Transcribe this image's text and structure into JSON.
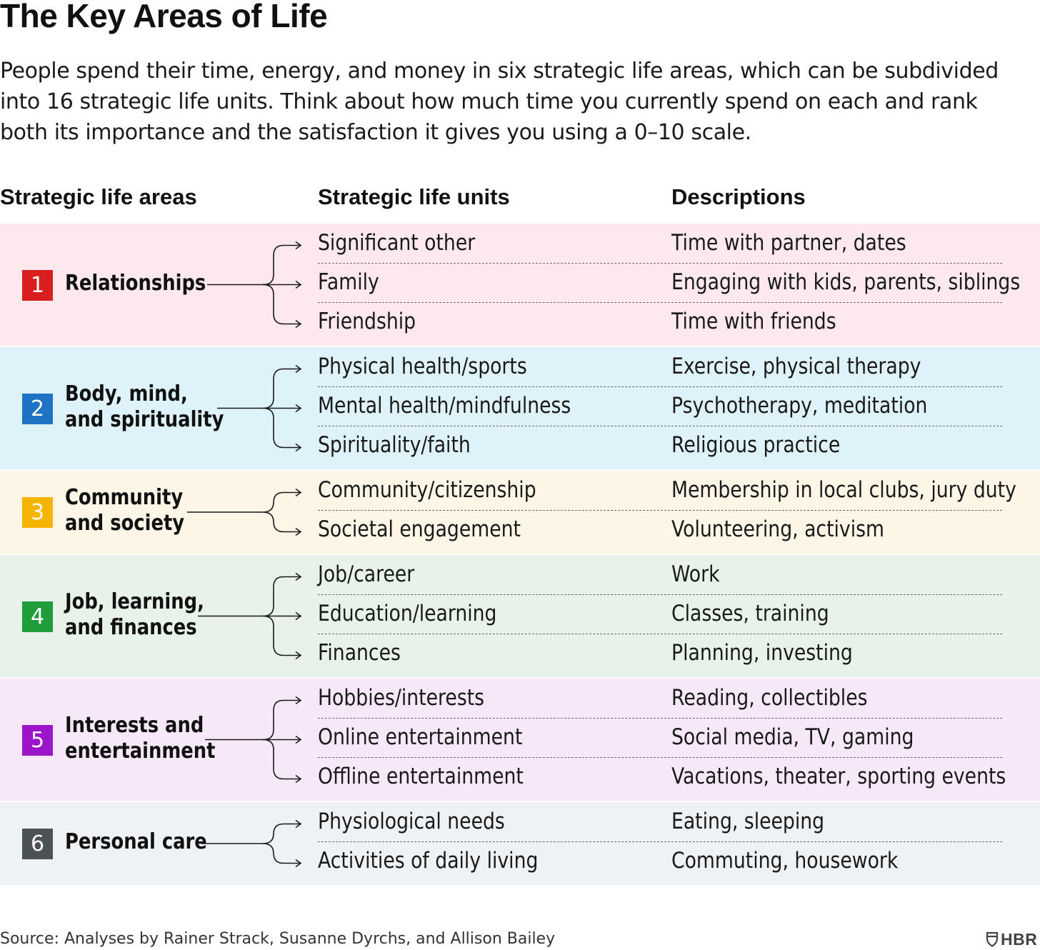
{
  "title": "The Key Areas of Life",
  "subtitle": "People spend their time, energy, and money in six strategic life areas, which can be subdivided into 16 strategic life units. Think about how much time you currently spend on each and rank both its importance and the satisfaction it gives you using a 0–10 scale.",
  "headers": {
    "areas": "Strategic life areas",
    "units": "Strategic life units",
    "descriptions": "Descriptions"
  },
  "areas": [
    {
      "number": "1",
      "name": "Relationships",
      "color": "#d81e1e",
      "background": "#fde8ee",
      "units": [
        {
          "name": "Significant other",
          "description": "Time with partner, dates"
        },
        {
          "name": "Family",
          "description": "Engaging with kids, parents, siblings"
        },
        {
          "name": "Friendship",
          "description": "Time with friends"
        }
      ]
    },
    {
      "number": "2",
      "name": "Body, mind,\nand spirituality",
      "color": "#1d74c4",
      "background": "#def3f9",
      "units": [
        {
          "name": "Physical health/sports",
          "description": "Exercise, physical therapy"
        },
        {
          "name": "Mental health/mindfulness",
          "description": "Psychotherapy, meditation"
        },
        {
          "name": "Spirituality/faith",
          "description": "Religious practice"
        }
      ]
    },
    {
      "number": "3",
      "name": "Community\nand society",
      "color": "#f5b400",
      "background": "#fdf6e6",
      "units": [
        {
          "name": "Community/citizenship",
          "description": "Membership in local clubs, jury duty"
        },
        {
          "name": "Societal engagement",
          "description": "Volunteering, activism"
        }
      ]
    },
    {
      "number": "4",
      "name": "Job, learning,\nand finances",
      "color": "#1f9d3a",
      "background": "#e7f3e9",
      "units": [
        {
          "name": "Job/career",
          "description": "Work"
        },
        {
          "name": "Education/learning",
          "description": "Classes, training"
        },
        {
          "name": "Finances",
          "description": "Planning, investing"
        }
      ]
    },
    {
      "number": "5",
      "name": "Interests and\nentertainment",
      "color": "#9b14c8",
      "background": "#f6e8f8",
      "units": [
        {
          "name": "Hobbies/interests",
          "description": "Reading, collectibles"
        },
        {
          "name": "Online entertainment",
          "description": "Social media, TV, gaming"
        },
        {
          "name": "Offline entertainment",
          "description": "Vacations, theater, sporting events"
        }
      ]
    },
    {
      "number": "6",
      "name": "Personal care",
      "color": "#4a5256",
      "background": "#eef2f5",
      "units": [
        {
          "name": "Physiological needs",
          "description": "Eating, sleeping"
        },
        {
          "name": "Activities of daily living",
          "description": "Commuting, housework"
        }
      ]
    }
  ],
  "source": "Source: Analyses by Rainer Strack, Susanne Dyrchs, and Allison Bailey",
  "logo": "HBR"
}
